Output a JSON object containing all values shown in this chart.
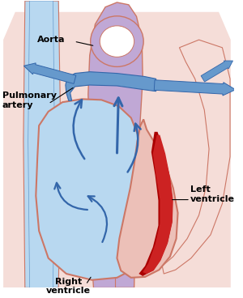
{
  "title": "",
  "bg_color": "#ffffff",
  "labels": {
    "aorta": "Aorta",
    "pulmonary_artery": "Pulmonary\nartery",
    "left_ventricle": "Left\nventricle",
    "right_ventricle": "Right\nventricle"
  },
  "colors": {
    "blue_light": "#b8d8f0",
    "blue_medium": "#6699cc",
    "blue_dark": "#3366aa",
    "red_dark": "#aa0000",
    "red_bright": "#cc2222",
    "pink_light": "#f5ddd8",
    "pink_medium": "#ecc0b8",
    "outline": "#cc7766",
    "purple_light": "#c0a8d5",
    "purple_medium": "#a888c0",
    "text_color": "#000000",
    "white": "#ffffff"
  },
  "figsize": [
    3.0,
    3.68
  ],
  "dpi": 100
}
